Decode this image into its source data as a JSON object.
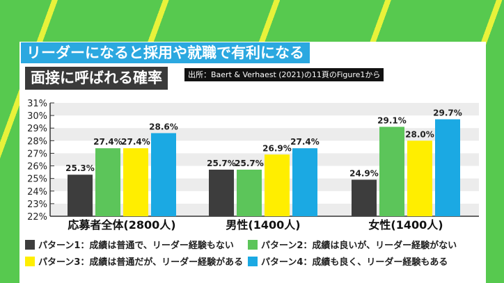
{
  "header": {
    "title": "リーダーになると採用や就職で有利になる",
    "subtitle": "面接に呼ばれる確率",
    "source": "出所：Baert & Verhaest (2021)の11頁のFigure1から"
  },
  "chart_data": {
    "type": "bar",
    "categories": [
      "応募者全体(2800人)",
      "男性(1400人)",
      "女性(1400人)"
    ],
    "series": [
      {
        "name": "パターン1：成績は普通で、リーダー経験もない",
        "color": "#3d3d3d",
        "values": [
          25.3,
          25.7,
          24.9
        ]
      },
      {
        "name": "パターン2：成績は良いが、リーダー経験がない",
        "color": "#5cc55a",
        "values": [
          27.4,
          25.7,
          29.1
        ]
      },
      {
        "name": "パターン3：成績は普通だが、リーダー経験がある",
        "color": "#ffee00",
        "values": [
          27.4,
          26.9,
          28.0
        ]
      },
      {
        "name": "パターン4：成績も良く、リーダー経験もある",
        "color": "#1ba9e3",
        "values": [
          28.6,
          27.4,
          29.7
        ]
      }
    ],
    "data_labels": [
      [
        "25.3%",
        "27.4%",
        "27.4%",
        "28.6%"
      ],
      [
        "25.7%",
        "25.7%",
        "26.9%",
        "27.4%"
      ],
      [
        "24.9%",
        "29.1%",
        "28.0%",
        "29.7%"
      ]
    ],
    "ylim": [
      22,
      31
    ],
    "yticks": [
      "22%",
      "23%",
      "24%",
      "25%",
      "26%",
      "27%",
      "28%",
      "29%",
      "30%",
      "31%"
    ],
    "grid": true,
    "legend": "bottom"
  }
}
